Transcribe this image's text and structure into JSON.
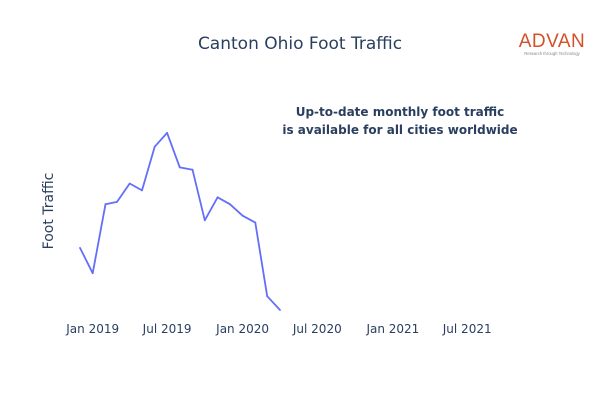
{
  "chart_data": {
    "type": "line",
    "title": "Canton Ohio Foot Traffic",
    "ylabel": "Foot Traffic",
    "xlabel": "",
    "x_ticks": [
      "Jan 2019",
      "Jul 2019",
      "Jan 2020",
      "Jul 2020",
      "Jan 2021",
      "Jul 2021"
    ],
    "xlim": [
      "2018-12-01",
      "2021-10-01"
    ],
    "ylim": [
      0,
      100
    ],
    "grid": false,
    "legend": "none",
    "annotation": [
      "Up-to-date monthly foot traffic",
      "is available for all cities worldwide"
    ],
    "series": [
      {
        "color": "#636efa",
        "x": [
          "2018-12-01",
          "2019-01-01",
          "2019-02-01",
          "2019-03-01",
          "2019-04-01",
          "2019-05-01",
          "2019-06-01",
          "2019-07-01",
          "2019-08-01",
          "2019-09-01",
          "2019-10-01",
          "2019-11-01",
          "2019-12-01",
          "2020-01-01",
          "2020-02-01",
          "2020-03-01",
          "2020-04-01"
        ],
        "values": [
          27,
          16,
          46,
          47,
          55,
          52,
          71,
          77,
          62,
          61,
          39,
          49,
          46,
          41,
          38,
          6,
          0
        ]
      }
    ]
  },
  "logo": {
    "word": "ADVAN",
    "tagline": "Research through Technology",
    "color": "#d4502a"
  }
}
